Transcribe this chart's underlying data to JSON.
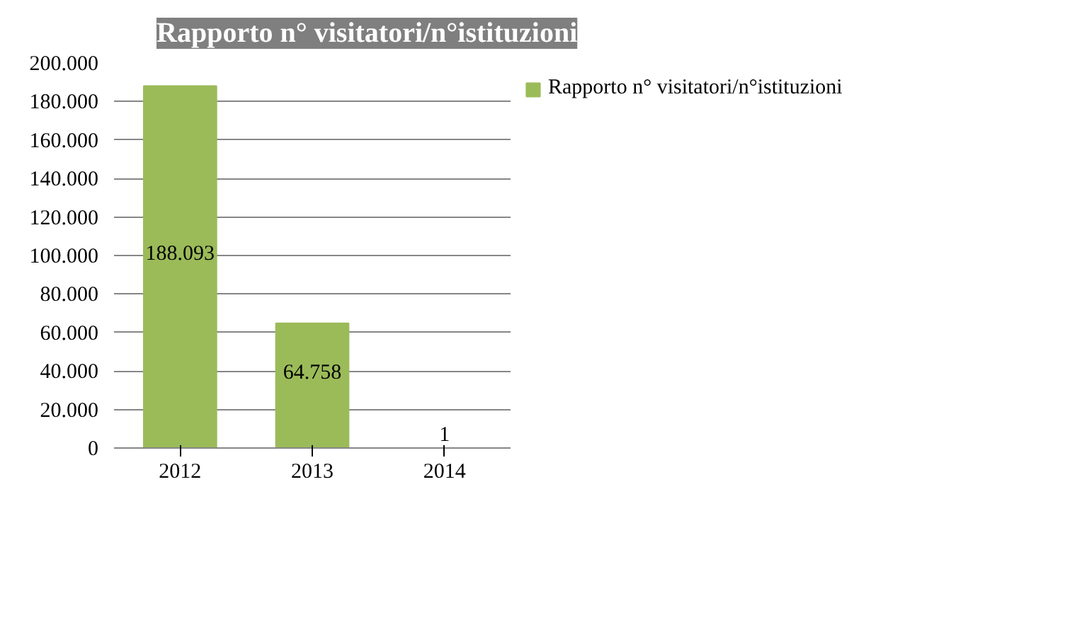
{
  "chart_data": {
    "type": "bar",
    "title": "Rapporto n° visitatori/n°istituzioni",
    "categories": [
      "2012",
      "2013",
      "2014"
    ],
    "series": [
      {
        "name": "Rapporto n° visitatori/n°istituzioni",
        "color": "#9bbb59",
        "values": [
          188093,
          64758,
          1
        ]
      }
    ],
    "value_labels": [
      "188.093",
      "64.758",
      "1"
    ],
    "ylim": [
      0,
      200000
    ],
    "yticks": [
      {
        "value": 0,
        "label": "0"
      },
      {
        "value": 20000,
        "label": "20.000"
      },
      {
        "value": 40000,
        "label": "40.000"
      },
      {
        "value": 60000,
        "label": "60.000"
      },
      {
        "value": 80000,
        "label": "80.000"
      },
      {
        "value": 100000,
        "label": "100.000"
      },
      {
        "value": 120000,
        "label": "120.000"
      },
      {
        "value": 140000,
        "label": "140.000"
      },
      {
        "value": 160000,
        "label": "160.000"
      },
      {
        "value": 180000,
        "label": "180.000"
      },
      {
        "value": 200000,
        "label": "200.000"
      }
    ],
    "grid": "y",
    "legend": "right"
  }
}
